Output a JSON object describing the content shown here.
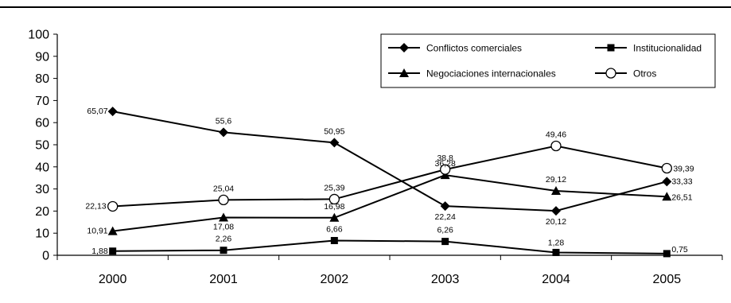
{
  "chart_data": {
    "type": "line",
    "categories": [
      "2000",
      "2001",
      "2002",
      "2003",
      "2004",
      "2005"
    ],
    "ylim": [
      0,
      100
    ],
    "yticks": [
      0,
      10,
      20,
      30,
      40,
      50,
      60,
      70,
      80,
      90,
      100
    ],
    "grid": false,
    "legend_position": "top-right",
    "series": [
      {
        "name": "Conflictos comerciales",
        "marker": "diamond",
        "values": [
          65.07,
          55.6,
          50.95,
          22.24,
          20.12,
          33.33
        ],
        "labels": [
          "65,07",
          "55,6",
          "50,95",
          "22,24",
          "20,12",
          "33,33"
        ]
      },
      {
        "name": "Institucionalidad",
        "marker": "square",
        "values": [
          1.88,
          2.26,
          6.66,
          6.26,
          1.28,
          0.75
        ],
        "labels": [
          "1,88",
          "2,26",
          "6,66",
          "6,26",
          "1,28",
          "0,75"
        ]
      },
      {
        "name": "Negociaciones internacionales",
        "marker": "triangle",
        "values": [
          10.91,
          17.08,
          16.98,
          36.28,
          29.12,
          26.51
        ],
        "labels": [
          "10,91",
          "17,08",
          "16,98",
          "36,28",
          "29,12",
          "26,51"
        ]
      },
      {
        "name": "Otros",
        "marker": "circle-open",
        "values": [
          22.13,
          25.04,
          25.39,
          38.8,
          49.46,
          39.39
        ],
        "labels": [
          "22,13",
          "25,04",
          "25,39",
          "38,8",
          "49,46",
          "39,39"
        ]
      }
    ]
  }
}
